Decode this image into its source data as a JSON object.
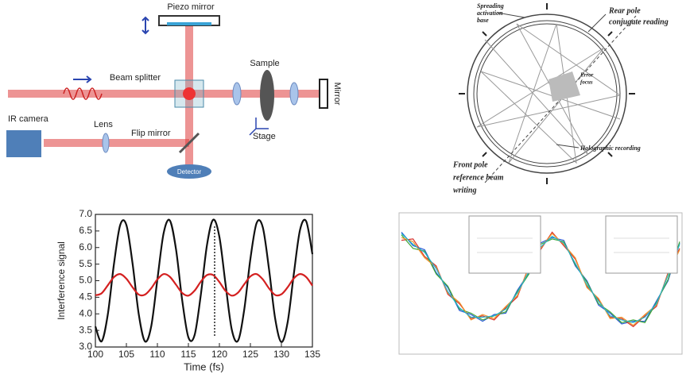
{
  "optics_diagram": {
    "piezo_mirror": "Piezo mirror",
    "beam_splitter": "Beam splitter",
    "sample": "Sample",
    "mirror": "Mirror",
    "ir_camera": "IR camera",
    "lens": "Lens",
    "flip_mirror": "Flip mirror",
    "stage": "Stage",
    "detector": "Detector"
  },
  "hologram_diagram": {
    "spreading": [
      "Spreading",
      "activation",
      "base"
    ],
    "rear_pole": [
      "Rear pole",
      "conjugate reading"
    ],
    "focus": [
      "Error",
      "focus"
    ],
    "holographic": "Holographic recording",
    "front_pole": [
      "Front pole",
      "reference beam",
      "writing"
    ]
  },
  "chart_data": [
    {
      "type": "line",
      "x_label": "Time (fs)",
      "y_label": "Interference signal",
      "x": [
        100,
        101,
        102,
        103,
        104,
        105,
        106,
        107,
        108,
        109,
        110,
        111,
        112,
        113,
        114,
        115,
        116,
        117,
        118,
        119,
        120,
        121,
        122,
        123,
        124,
        125,
        126,
        127,
        128,
        129,
        130,
        131,
        132,
        133,
        134,
        135
      ],
      "series": [
        {
          "color": "#111111",
          "values": [
            3.62,
            3.17,
            3.98,
            5.51,
            6.68,
            6.68,
            5.51,
            3.98,
            3.17,
            3.62,
            5.04,
            6.43,
            6.82,
            5.95,
            4.41,
            3.29,
            3.36,
            4.57,
            6.08,
            6.84,
            6.32,
            4.88,
            3.52,
            3.19,
            4.12,
            5.66,
            6.74,
            6.61,
            5.35,
            3.85,
            3.15,
            3.74,
            5.2,
            6.53,
            6.79,
            5.8
          ]
        },
        {
          "color": "#d42020",
          "values": [
            4.56,
            4.62,
            4.86,
            5.11,
            5.2,
            5.06,
            4.8,
            4.58,
            4.58,
            4.77,
            5.04,
            5.2,
            5.12,
            4.88,
            4.63,
            4.55,
            4.7,
            4.97,
            5.17,
            5.17,
            4.96,
            4.69,
            4.55,
            4.64,
            4.89,
            5.13,
            5.2,
            5.04,
            4.77,
            4.57,
            4.59,
            4.8,
            5.07,
            5.2,
            5.11,
            4.85
          ]
        }
      ],
      "xlim": [
        100,
        135
      ],
      "xticks": [
        100,
        105,
        110,
        115,
        120,
        125,
        130,
        135
      ],
      "ylim": [
        3,
        7
      ],
      "yticks": [
        {
          "value": 3,
          "label": "3.0"
        },
        3.5,
        {
          "value": 4,
          "label": "4.0"
        },
        4.5,
        {
          "value": 5,
          "label": "5.0"
        },
        5.5,
        {
          "value": 6,
          "label": "6.0"
        },
        6.5,
        {
          "value": 7,
          "label": "7.0"
        }
      ]
    },
    {
      "type": "line",
      "ylim": [
        0,
        1
      ],
      "series": [
        {
          "color": "#2a5bd7",
          "values": [
            0.88,
            0.78,
            0.75,
            0.58,
            0.47,
            0.3,
            0.27,
            0.22,
            0.27,
            0.28,
            0.45,
            0.58,
            0.8,
            0.84,
            0.82,
            0.63,
            0.52,
            0.34,
            0.28,
            0.2,
            0.22,
            0.22,
            0.37,
            0.52,
            0.8
          ]
        },
        {
          "color": "#d8322c",
          "values": [
            0.82,
            0.83,
            0.7,
            0.63,
            0.42,
            0.35,
            0.24,
            0.26,
            0.23,
            0.32,
            0.4,
            0.63,
            0.75,
            0.88,
            0.78,
            0.68,
            0.48,
            0.38,
            0.25,
            0.24,
            0.18,
            0.26,
            0.33,
            0.58,
            0.76
          ]
        },
        {
          "color": "#3fa83a",
          "values": [
            0.86,
            0.76,
            0.74,
            0.57,
            0.48,
            0.31,
            0.28,
            0.23,
            0.26,
            0.29,
            0.44,
            0.57,
            0.79,
            0.83,
            0.81,
            0.64,
            0.51,
            0.35,
            0.29,
            0.21,
            0.23,
            0.21,
            0.36,
            0.53,
            0.81
          ]
        },
        {
          "color": "#f0932b",
          "values": [
            0.84,
            0.81,
            0.69,
            0.62,
            0.43,
            0.36,
            0.23,
            0.27,
            0.24,
            0.33,
            0.41,
            0.62,
            0.76,
            0.87,
            0.79,
            0.69,
            0.47,
            0.39,
            0.24,
            0.25,
            0.19,
            0.27,
            0.34,
            0.57,
            0.75
          ]
        },
        {
          "color": "#22b3c9",
          "values": [
            0.87,
            0.79,
            0.73,
            0.61,
            0.44,
            0.32,
            0.25,
            0.25,
            0.26,
            0.31,
            0.43,
            0.59,
            0.77,
            0.85,
            0.8,
            0.65,
            0.49,
            0.37,
            0.26,
            0.23,
            0.21,
            0.25,
            0.35,
            0.56,
            0.79
          ]
        }
      ]
    }
  ]
}
